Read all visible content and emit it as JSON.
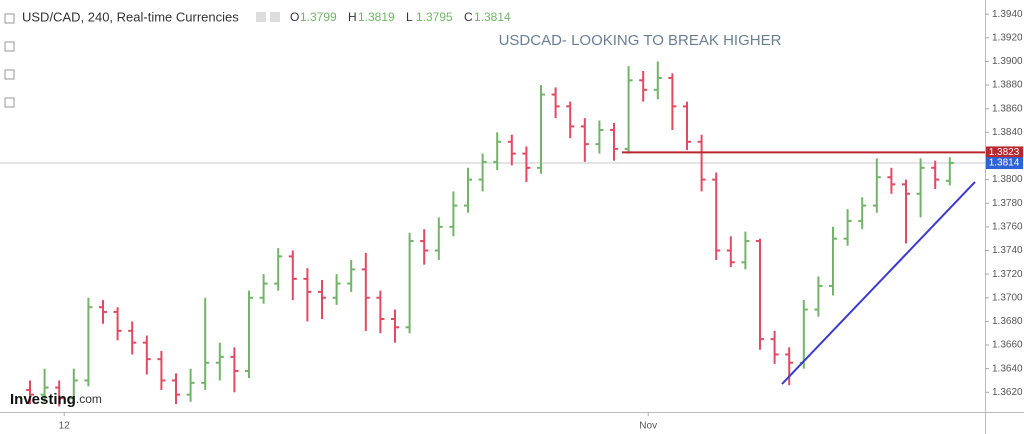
{
  "chart_data": {
    "type": "ohlc",
    "title": "USD/CAD, 240, Real-time Currencies",
    "header_values": [
      {
        "label": "O",
        "value": 1.3799
      },
      {
        "label": "H",
        "value": 1.3819
      },
      {
        "label": "L",
        "value": 1.3795
      },
      {
        "label": "C",
        "value": 1.3814
      }
    ],
    "annotation": "USDCAD- LOOKING TO BREAK HIGHER",
    "categories": [
      null,
      null,
      "12",
      null,
      null,
      null,
      null,
      null,
      null,
      null,
      null,
      null,
      null,
      null,
      null,
      null,
      null,
      null,
      null,
      null,
      null,
      null,
      null,
      null,
      null,
      null,
      null,
      null,
      null,
      null,
      null,
      null,
      null,
      null,
      null,
      null,
      null,
      null,
      null,
      null,
      null,
      null,
      "Nov",
      null,
      null,
      null,
      null,
      null,
      null,
      null,
      null,
      null,
      null,
      null,
      null,
      null,
      null,
      null,
      null,
      null,
      null,
      null,
      null,
      null
    ],
    "open": [
      1.3622,
      1.3618,
      1.3624,
      1.3615,
      1.363,
      1.3692,
      1.3688,
      1.3672,
      1.3662,
      1.3648,
      1.363,
      1.3618,
      1.3628,
      1.3645,
      1.365,
      1.3638,
      1.37,
      1.3712,
      1.3735,
      1.3716,
      1.3705,
      1.37,
      1.3712,
      1.3724,
      1.37,
      1.3682,
      1.3675,
      1.3748,
      1.374,
      1.376,
      1.3778,
      1.38,
      1.3815,
      1.3832,
      1.3822,
      1.381,
      1.3872,
      1.3862,
      1.3845,
      1.383,
      1.3842,
      1.3826,
      1.3884,
      1.3876,
      1.3886,
      1.3862,
      1.3832,
      1.38,
      1.374,
      1.373,
      1.3748,
      1.3665,
      1.3652,
      1.3645,
      1.369,
      1.371,
      1.375,
      1.3765,
      1.3778,
      1.3802,
      1.3796,
      1.3788,
      1.381,
      1.3799
    ],
    "high": [
      1.363,
      1.364,
      1.363,
      1.364,
      1.37,
      1.3698,
      1.3692,
      1.368,
      1.3668,
      1.3655,
      1.3636,
      1.364,
      1.37,
      1.3662,
      1.3658,
      1.3706,
      1.372,
      1.3742,
      1.374,
      1.3725,
      1.3715,
      1.372,
      1.3732,
      1.3738,
      1.3706,
      1.369,
      1.3755,
      1.3758,
      1.3768,
      1.379,
      1.381,
      1.3822,
      1.384,
      1.3838,
      1.3828,
      1.388,
      1.3878,
      1.3866,
      1.3852,
      1.385,
      1.3848,
      1.3896,
      1.3892,
      1.39,
      1.389,
      1.3866,
      1.3838,
      1.3806,
      1.3752,
      1.3756,
      1.375,
      1.3672,
      1.3658,
      1.3698,
      1.3718,
      1.376,
      1.3775,
      1.3785,
      1.3818,
      1.381,
      1.38,
      1.3818,
      1.3816,
      1.3819
    ],
    "low": [
      1.361,
      1.3612,
      1.3608,
      1.361,
      1.3625,
      1.3678,
      1.3664,
      1.3652,
      1.3635,
      1.3622,
      1.361,
      1.3612,
      1.3622,
      1.363,
      1.362,
      1.3632,
      1.3695,
      1.3706,
      1.3698,
      1.368,
      1.3682,
      1.3694,
      1.3705,
      1.3672,
      1.367,
      1.3662,
      1.367,
      1.3728,
      1.3732,
      1.3752,
      1.3772,
      1.379,
      1.3808,
      1.3812,
      1.3798,
      1.3805,
      1.3852,
      1.3835,
      1.3815,
      1.3822,
      1.3816,
      1.3822,
      1.3866,
      1.3868,
      1.3842,
      1.3825,
      1.379,
      1.3732,
      1.3726,
      1.3724,
      1.3656,
      1.3644,
      1.3626,
      1.364,
      1.3684,
      1.3702,
      1.3744,
      1.3758,
      1.3772,
      1.3788,
      1.3746,
      1.3768,
      1.3792,
      1.3795
    ],
    "close": [
      1.3618,
      1.3624,
      1.3615,
      1.363,
      1.3692,
      1.3688,
      1.3672,
      1.3662,
      1.3648,
      1.363,
      1.3618,
      1.3628,
      1.3645,
      1.365,
      1.3638,
      1.37,
      1.3712,
      1.3735,
      1.3716,
      1.3705,
      1.37,
      1.3712,
      1.3724,
      1.37,
      1.3682,
      1.3675,
      1.3748,
      1.374,
      1.376,
      1.3778,
      1.38,
      1.3815,
      1.3832,
      1.3822,
      1.381,
      1.3872,
      1.3862,
      1.3845,
      1.383,
      1.3842,
      1.3826,
      1.3884,
      1.3876,
      1.3886,
      1.3862,
      1.3832,
      1.38,
      1.374,
      1.373,
      1.3748,
      1.3665,
      1.3652,
      1.3645,
      1.369,
      1.371,
      1.375,
      1.3765,
      1.3778,
      1.3802,
      1.3796,
      1.3788,
      1.381,
      1.38,
      1.3814
    ],
    "up_color": "#72b468",
    "down_color": "#e04a62",
    "ylim": [
      1.3605,
      1.3952
    ],
    "yticks": [
      {
        "value": 1.362,
        "label": "1.3620"
      },
      {
        "value": 1.364,
        "label": "1.3640"
      },
      {
        "value": 1.366,
        "label": "1.3660"
      },
      {
        "value": 1.368,
        "label": "1.3680"
      },
      {
        "value": 1.37,
        "label": "1.3700"
      },
      {
        "value": 1.372,
        "label": "1.3720"
      },
      {
        "value": 1.374,
        "label": "1.3740"
      },
      {
        "value": 1.376,
        "label": "1.3760"
      },
      {
        "value": 1.378,
        "label": "1.3780"
      },
      {
        "value": 1.38,
        "label": "1.3800"
      },
      {
        "value": 1.382,
        "label": "1.3820"
      },
      {
        "value": 1.384,
        "label": "1.3840"
      },
      {
        "value": 1.386,
        "label": "1.3860"
      },
      {
        "value": 1.388,
        "label": "1.3880"
      },
      {
        "value": 1.39,
        "label": "1.3900"
      },
      {
        "value": 1.392,
        "label": "1.3920"
      },
      {
        "value": 1.394,
        "label": "1.3940"
      }
    ],
    "level_line": {
      "value": 1.3823,
      "color": "#b8282e"
    },
    "trend_line": {
      "values": [
        1.3627,
        1.3798
      ],
      "color": "#3a3ad0"
    },
    "last_price_color": "#2f62d8"
  },
  "logo": {
    "name": "Investing",
    "suffix": ".com"
  }
}
